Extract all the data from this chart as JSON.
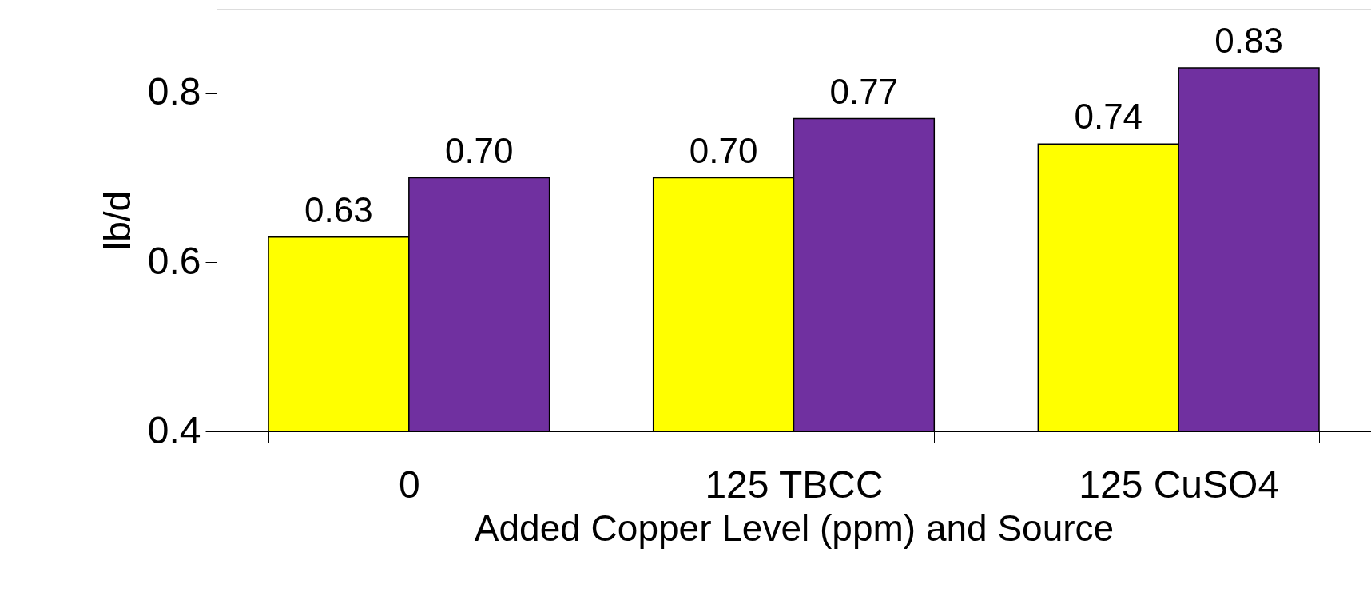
{
  "chart_data": {
    "type": "bar",
    "xlabel": "Added Copper Level (ppm) and Source",
    "ylabel": "lb/d",
    "categories": [
      "0",
      "125 TBCC",
      "125 CuSO4"
    ],
    "series": [
      {
        "color": "#ffff00",
        "values": [
          0.63,
          0.7,
          0.74
        ],
        "value_labels": [
          "0.63",
          "0.70",
          "0.74"
        ]
      },
      {
        "color": "#7030a0",
        "values": [
          0.7,
          0.77,
          0.83
        ],
        "value_labels": [
          "0.70",
          "0.77",
          "0.83"
        ]
      }
    ],
    "ylim": [
      0.4,
      0.9
    ],
    "yticks": [
      0.4,
      0.6,
      0.8
    ]
  }
}
